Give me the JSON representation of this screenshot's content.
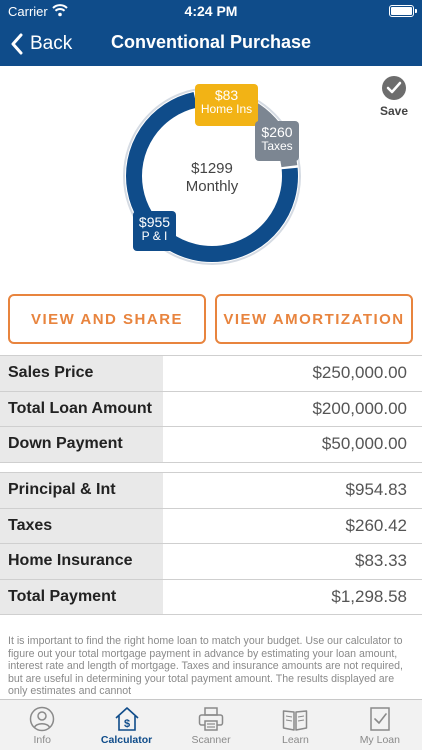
{
  "status_bar": {
    "carrier": "Carrier",
    "time": "4:24 PM"
  },
  "nav": {
    "back_label": "Back",
    "title": "Conventional Purchase"
  },
  "save": {
    "label": "Save"
  },
  "payment_chart": {
    "center_amount": "$1299",
    "center_label": "Monthly",
    "segments": [
      {
        "name": "P & I",
        "amount": "$955",
        "value": 955,
        "color": "#0f4c8a"
      },
      {
        "name": "Home Ins",
        "amount": "$83",
        "value": 83,
        "color": "#f2b315"
      },
      {
        "name": "Taxes",
        "amount": "$260",
        "value": 260,
        "color": "#7c8692"
      }
    ]
  },
  "buttons": {
    "share": "VIEW AND SHARE",
    "amortization": "VIEW AMORTIZATION"
  },
  "loan_table": [
    {
      "label": "Sales Price",
      "value": "$250,000.00"
    },
    {
      "label": "Total Loan Amount",
      "value": "$200,000.00"
    },
    {
      "label": "Down Payment",
      "value": "$50,000.00"
    }
  ],
  "payment_table": [
    {
      "label": "Principal & Int",
      "value": "$954.83"
    },
    {
      "label": "Taxes",
      "value": "$260.42"
    },
    {
      "label": "Home Insurance",
      "value": "$83.33"
    },
    {
      "label": "Total Payment",
      "value": "$1,298.58"
    }
  ],
  "disclaimer": "It is important to find the right home loan to match your budget. Use our calculator to figure out your total mortgage payment in advance by estimating your loan amount, interest rate and length of mortgage. Taxes and insurance amounts are not required, but are useful in determining your total payment amount.  The results displayed are only estimates and cannot",
  "tabs": [
    {
      "label": "Info",
      "icon": "person-icon",
      "active": false
    },
    {
      "label": "Calculator",
      "icon": "house-dollar-icon",
      "active": true
    },
    {
      "label": "Scanner",
      "icon": "printer-icon",
      "active": false
    },
    {
      "label": "Learn",
      "icon": "book-icon",
      "active": false
    },
    {
      "label": "My Loan",
      "icon": "document-check-icon",
      "active": false
    }
  ],
  "colors": {
    "brand": "#0f4c8a",
    "accent": "#e8843e",
    "insurance": "#f2b315",
    "taxes": "#7c8692"
  }
}
